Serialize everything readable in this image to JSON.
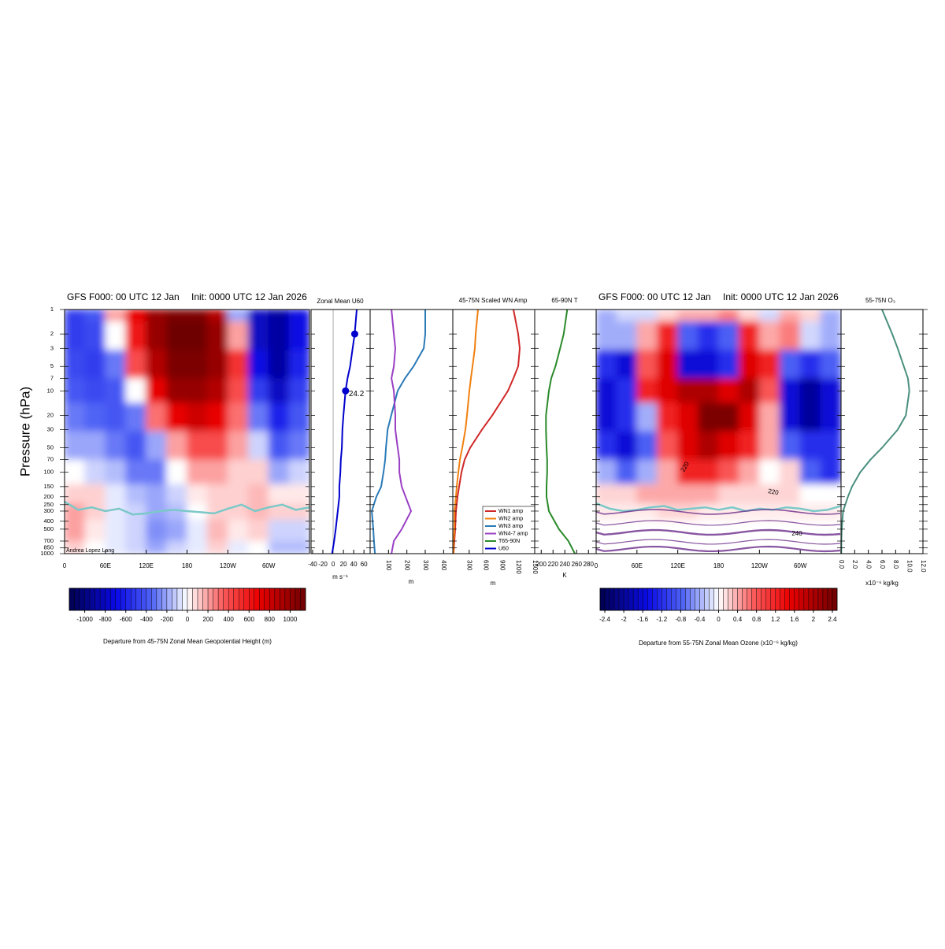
{
  "chart_data": [
    {
      "type": "heatmap",
      "title": "GFS F000: 00 UTC 12 Jan",
      "init_label": "Init: 0000 UTC 12 Jan 2026",
      "ylabel": "Pressure (hPa)",
      "credit": "Andrea Lopez Lang",
      "ylog": true,
      "ylim": [
        1000,
        1
      ],
      "yticks": [
        1,
        2,
        3,
        5,
        7,
        10,
        20,
        30,
        50,
        70,
        100,
        150,
        200,
        250,
        300,
        400,
        500,
        700,
        850,
        1000
      ],
      "xlim": [
        0,
        360
      ],
      "xticks": [
        0,
        {
          "value": 60,
          "label": "60E"
        },
        {
          "value": 120,
          "label": "120E"
        },
        180,
        {
          "value": 240,
          "label": "120W"
        },
        {
          "value": 300,
          "label": "60W"
        }
      ],
      "x": [
        0,
        30,
        60,
        90,
        120,
        150,
        180,
        210,
        240,
        270,
        300,
        330
      ],
      "y": [
        1,
        2,
        5,
        10,
        20,
        50,
        100,
        200,
        300,
        500,
        1000
      ],
      "z": [
        [
          -500,
          -400,
          200,
          700,
          1000,
          1100,
          1100,
          900,
          -200,
          -800,
          -900,
          -700
        ],
        [
          -500,
          -450,
          0,
          600,
          1000,
          1200,
          1200,
          1000,
          200,
          -800,
          -900,
          -700
        ],
        [
          -450,
          -500,
          -300,
          400,
          900,
          1100,
          1100,
          1000,
          500,
          -700,
          -900,
          -600
        ],
        [
          -400,
          -450,
          -400,
          0,
          700,
          1000,
          1000,
          900,
          400,
          -500,
          -800,
          -500
        ],
        [
          -300,
          -350,
          -400,
          -300,
          300,
          700,
          800,
          700,
          300,
          -300,
          -600,
          -400
        ],
        [
          -200,
          -200,
          -300,
          -400,
          -200,
          200,
          400,
          400,
          200,
          -100,
          -400,
          -300
        ],
        [
          0,
          -100,
          -150,
          -300,
          -300,
          0,
          200,
          200,
          100,
          100,
          -200,
          -100
        ],
        [
          100,
          100,
          -50,
          -150,
          -200,
          -100,
          50,
          100,
          100,
          150,
          50,
          50
        ],
        [
          200,
          100,
          -50,
          -100,
          -200,
          -150,
          0,
          100,
          100,
          150,
          100,
          100
        ],
        [
          200,
          50,
          -50,
          -100,
          -250,
          -200,
          -50,
          150,
          50,
          100,
          -100,
          -100
        ],
        [
          100,
          0,
          -50,
          -100,
          -200,
          -100,
          -50,
          100,
          -50,
          0,
          -150,
          -150
        ]
      ],
      "tropopause": {
        "color": "#7cc8c8",
        "x": [
          0,
          20,
          40,
          60,
          80,
          100,
          120,
          140,
          160,
          180,
          200,
          220,
          240,
          260,
          280,
          300,
          320,
          340,
          360
        ],
        "values": [
          230,
          290,
          270,
          300,
          280,
          330,
          320,
          300,
          290,
          300,
          310,
          320,
          280,
          250,
          300,
          270,
          250,
          290,
          270
        ]
      },
      "colorbar": {
        "label": "Departure from 45-75N Zonal Mean Geopotential Height (m)",
        "lim": [
          -1150,
          1150
        ],
        "ticks": [
          -1000,
          -800,
          -600,
          -400,
          -200,
          0,
          200,
          400,
          600,
          800,
          1000
        ]
      }
    },
    {
      "type": "profile",
      "title": "Zonal Mean U60",
      "xlabel": "m s⁻¹",
      "xlim": [
        -43,
        72
      ],
      "xticks": [
        -40,
        -20,
        0,
        20,
        40,
        60
      ],
      "y": [
        1,
        2,
        3,
        5,
        7,
        10,
        20,
        30,
        50,
        70,
        100,
        150,
        200,
        300,
        500,
        700,
        1000
      ],
      "series": [
        {
          "name": "U60",
          "color": "#0000cc",
          "values": [
            46,
            42,
            38,
            33,
            28,
            24.2,
            20,
            18,
            17,
            15,
            14,
            12,
            12,
            9,
            5,
            2,
            -2
          ]
        }
      ],
      "markers": {
        "y": [
          2,
          10
        ],
        "x": [
          42,
          24.2
        ],
        "value_labels": [
          null,
          "24.2"
        ]
      }
    },
    {
      "type": "profile",
      "xlabel": "m",
      "xlim": [
        0,
        450
      ],
      "xticks": [
        100,
        200,
        300,
        400
      ],
      "y": [
        1,
        2,
        3,
        5,
        7,
        10,
        20,
        30,
        50,
        70,
        100,
        150,
        200,
        300,
        500,
        700,
        1000
      ],
      "series": [
        {
          "name": "WN3 amp",
          "color": "#2a7ab8",
          "values": [
            300,
            300,
            292,
            236,
            190,
            150,
            115,
            95,
            86,
            82,
            73,
            60,
            34,
            9,
            17,
            21,
            26
          ]
        },
        {
          "name": "WN4-7 amp",
          "color": "#9a3fc4",
          "values": [
            116,
            129,
            137,
            129,
            116,
            129,
            137,
            137,
            150,
            159,
            159,
            172,
            193,
            223,
            172,
            129,
            116
          ]
        }
      ]
    },
    {
      "type": "profile",
      "title": "45-75N Scaled WN Amp",
      "xlabel": "m",
      "xlim": [
        0,
        1500
      ],
      "xticks": [
        300,
        600,
        900,
        1200,
        1500
      ],
      "legend": "lower right",
      "y": [
        1,
        2,
        3,
        5,
        7,
        10,
        20,
        30,
        50,
        70,
        100,
        150,
        200,
        300,
        500,
        700,
        1000
      ],
      "series": [
        {
          "name": "WN1 amp",
          "color": "#d02828",
          "values": [
            1111,
            1197,
            1226,
            1197,
            1111,
            1010,
            722,
            534,
            317,
            216,
            159,
            115,
            87,
            58,
            43,
            29,
            14
          ]
        },
        {
          "name": "WN2 amp",
          "color": "#f08010",
          "values": [
            462,
            418,
            404,
            361,
            332,
            303,
            260,
            231,
            173,
            130,
            101,
            72,
            58,
            29,
            29,
            14,
            14
          ]
        }
      ]
    },
    {
      "type": "profile",
      "title": "65-90N T",
      "xlabel": "K",
      "xlim": [
        189,
        293
      ],
      "xticks": [
        200,
        220,
        240,
        260,
        280
      ],
      "y": [
        1,
        2,
        3,
        5,
        7,
        10,
        20,
        30,
        50,
        70,
        100,
        150,
        200,
        300,
        500,
        700,
        1000
      ],
      "series": [
        {
          "name": "T65-90N",
          "color": "#2a8a2a",
          "values": [
            244,
            238,
            232,
            224,
            217,
            213,
            208,
            208,
            209,
            210,
            210,
            209,
            209,
            213,
            230,
            246,
            257
          ]
        }
      ]
    },
    {
      "type": "heatmap",
      "title": "GFS F000: 00 UTC 12 Jan",
      "init_label": "Init: 0000 UTC 12 Jan 2026",
      "xlim": [
        0,
        360
      ],
      "xticks": [
        0,
        {
          "value": 60,
          "label": "60E"
        },
        {
          "value": 120,
          "label": "120E"
        },
        180,
        {
          "value": 240,
          "label": "120W"
        },
        {
          "value": 300,
          "label": "60W"
        }
      ],
      "x": [
        0,
        30,
        60,
        90,
        120,
        150,
        180,
        210,
        240,
        270,
        300,
        330
      ],
      "y": [
        1,
        2,
        5,
        10,
        20,
        50,
        100,
        200,
        300,
        500,
        1000
      ],
      "z": [
        [
          -0.4,
          -0.2,
          -0.2,
          0.2,
          0.4,
          0.4,
          0.6,
          0.2,
          -0.2,
          0.4,
          0.2,
          -0.4
        ],
        [
          -0.4,
          -0.4,
          0.4,
          1.2,
          -0.8,
          -1.2,
          -0.8,
          1.2,
          0.4,
          0.6,
          -0.2,
          -0.4
        ],
        [
          -1.2,
          -1.6,
          0.8,
          1.6,
          -1.6,
          -1.6,
          -1.2,
          1.6,
          1.2,
          -0.8,
          -1.2,
          -0.8
        ],
        [
          -1.6,
          -1.2,
          1.2,
          1.6,
          2.0,
          2.0,
          1.6,
          2.0,
          0.8,
          -1.6,
          -2.0,
          -1.6
        ],
        [
          -1.6,
          -1.2,
          -0.4,
          1.2,
          1.6,
          2.4,
          2.4,
          1.6,
          0.4,
          -1.6,
          -2.0,
          -1.6
        ],
        [
          -1.2,
          -1.6,
          -0.8,
          0.8,
          1.6,
          2.0,
          1.6,
          1.2,
          0.4,
          -0.8,
          -1.2,
          -1.2
        ],
        [
          -0.4,
          -0.8,
          -0.4,
          0.4,
          1.2,
          1.2,
          0.8,
          0.4,
          0.0,
          0.2,
          -0.8,
          -1.2
        ],
        [
          0.2,
          0.2,
          0.4,
          0.4,
          0.4,
          0.4,
          0.2,
          0.2,
          0.2,
          0.2,
          0.0,
          0.0
        ],
        [
          0.1,
          0.1,
          0.1,
          0.2,
          0.2,
          0.1,
          0.1,
          0.1,
          0.1,
          0.1,
          0.1,
          0.1
        ],
        [
          0,
          0,
          0,
          0,
          0,
          0,
          0,
          0,
          0,
          0,
          0,
          0
        ],
        [
          0,
          0,
          0,
          0,
          0,
          0,
          0,
          0,
          0,
          0,
          0,
          0
        ]
      ],
      "tropopause": {
        "color": "#7cc8c8",
        "x": [
          0,
          20,
          40,
          60,
          80,
          100,
          120,
          140,
          160,
          180,
          200,
          220,
          240,
          260,
          280,
          300,
          320,
          340,
          360
        ],
        "values": [
          240,
          280,
          300,
          290,
          270,
          260,
          290,
          280,
          270,
          290,
          270,
          300,
          280,
          290,
          270,
          280,
          300,
          290,
          260
        ]
      },
      "contour_labels": [
        220,
        220,
        240
      ],
      "colorbar": {
        "label": "Departure from 55-75N Zonal Mean Ozone (x10⁻⁶ kg/kg)",
        "lim": [
          -2.5,
          2.5
        ],
        "ticks": [
          -2.4,
          -2,
          -1.6,
          -1.2,
          -0.8,
          -0.4,
          0,
          0.4,
          0.8,
          1.2,
          1.6,
          2,
          2.4
        ]
      }
    },
    {
      "type": "profile",
      "title": "55-75N O₃",
      "xlabel": "x10⁻⁶ kg/kg",
      "xlim": [
        0,
        12
      ],
      "xticks": [
        {
          "value": 0,
          "label": "0.0"
        },
        {
          "value": 2,
          "label": "2.0"
        },
        {
          "value": 4,
          "label": "4.0"
        },
        {
          "value": 6,
          "label": "6.0"
        },
        {
          "value": 8,
          "label": "8.0"
        },
        {
          "value": 10,
          "label": "10.0"
        },
        {
          "value": 12,
          "label": "12.0"
        }
      ],
      "y": [
        1,
        2,
        3,
        5,
        7,
        10,
        20,
        30,
        50,
        70,
        100,
        150,
        200,
        300,
        500,
        700,
        1000
      ],
      "series": [
        {
          "name": "O3",
          "color": "#4a8f7f",
          "values": [
            6.0,
            7.5,
            8.3,
            9.2,
            9.8,
            10.0,
            9.5,
            8.3,
            6.0,
            4.3,
            2.8,
            1.6,
            1.0,
            0.3,
            0.1,
            0.05,
            0.03
          ]
        }
      ]
    }
  ]
}
